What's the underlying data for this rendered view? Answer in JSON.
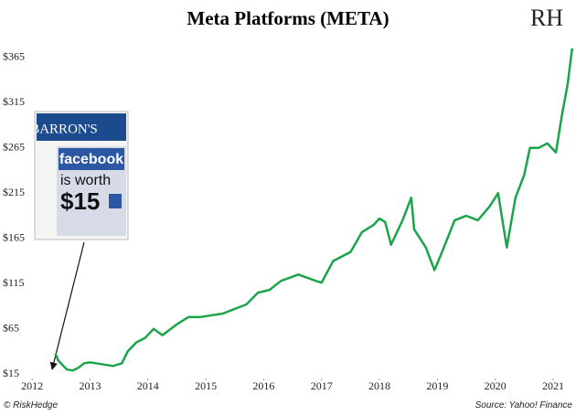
{
  "chart_data": {
    "type": "line",
    "title": "Meta Platforms (META)",
    "logo": "RH",
    "credit": "© RiskHedge",
    "source": "Source: Yahoo! Finance",
    "inset": {
      "masthead": "BARRON'S",
      "brand": "facebook",
      "line1": "is worth",
      "line2": "$15"
    },
    "x": [
      2012.4,
      2012.45,
      2012.6,
      2012.7,
      2012.8,
      2012.9,
      2013.0,
      2013.2,
      2013.4,
      2013.55,
      2013.65,
      2013.8,
      2013.95,
      2014.1,
      2014.25,
      2014.5,
      2014.7,
      2014.9,
      2015.1,
      2015.3,
      2015.5,
      2015.7,
      2015.9,
      2016.1,
      2016.3,
      2016.6,
      2016.9,
      2017.0,
      2017.2,
      2017.5,
      2017.7,
      2017.9,
      2018.0,
      2018.1,
      2018.2,
      2018.4,
      2018.55,
      2018.6,
      2018.8,
      2018.95,
      2019.05,
      2019.3,
      2019.5,
      2019.7,
      2019.9,
      2020.05,
      2020.2,
      2020.35,
      2020.5,
      2020.6,
      2020.75,
      2020.9,
      2021.05,
      2021.15,
      2021.25,
      2021.33
    ],
    "series": [
      {
        "name": "META",
        "color": "#1aa54a",
        "values": [
          38,
          30,
          20,
          19,
          22,
          27,
          28,
          26,
          24,
          27,
          40,
          50,
          55,
          65,
          58,
          70,
          78,
          78,
          80,
          82,
          87,
          92,
          105,
          108,
          118,
          125,
          118,
          116,
          140,
          150,
          172,
          180,
          187,
          183,
          158,
          185,
          210,
          175,
          155,
          130,
          145,
          185,
          190,
          185,
          200,
          215,
          155,
          210,
          235,
          265,
          265,
          270,
          260,
          300,
          335,
          375
        ]
      }
    ],
    "xlim": [
      2011.95,
      2021.38
    ],
    "xticks": [
      2012,
      2013,
      2014,
      2015,
      2016,
      2017,
      2018,
      2019,
      2020,
      2021
    ],
    "ylim": [
      -1,
      383
    ],
    "yticks": [
      {
        "value": 15,
        "label": "$15"
      },
      {
        "value": 65,
        "label": "$65"
      },
      {
        "value": 115,
        "label": "$115"
      },
      {
        "value": 165,
        "label": "$165"
      },
      {
        "value": 215,
        "label": "$215"
      },
      {
        "value": 265,
        "label": "$265"
      },
      {
        "value": 315,
        "label": "$315"
      },
      {
        "value": 365,
        "label": "$365"
      }
    ],
    "grid": false
  }
}
